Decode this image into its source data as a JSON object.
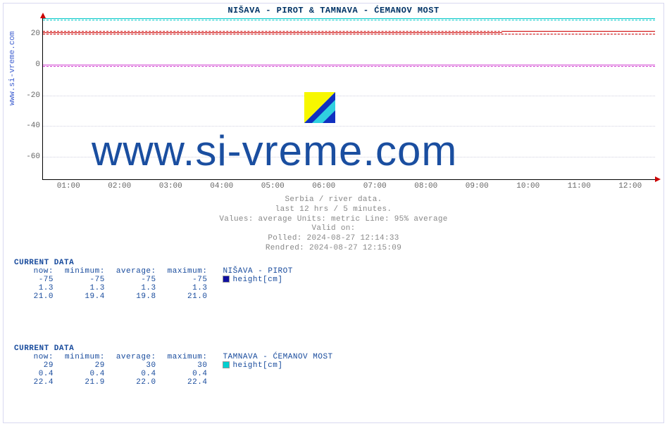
{
  "title": "NIŠAVA -  PIROT &  TAMNAVA -  ĆEMANOV MOST",
  "ylabel": "www.si-vreme.com",
  "watermark_text": "www.si-vreme.com",
  "chart": {
    "type": "line",
    "background_color": "#ffffff",
    "grid_color": "#d0d0e0",
    "axis_color": "#000000",
    "arrow_color": "#cc0000",
    "y": {
      "min": -75,
      "max": 30,
      "ticks": [
        -60,
        -40,
        -20,
        0,
        20
      ]
    },
    "x": {
      "ticks": [
        "01:00",
        "02:00",
        "03:00",
        "04:00",
        "05:00",
        "06:00",
        "07:00",
        "08:00",
        "09:00",
        "10:00",
        "11:00",
        "12:00"
      ]
    },
    "series": [
      {
        "name": "nisava-height-top",
        "color": "#00c8c8",
        "style": "solid",
        "y": 30
      },
      {
        "name": "nisava-height-band",
        "color": "#00c8c8",
        "style": "dashed",
        "y": 29
      },
      {
        "name": "tamnava-red-solid",
        "color": "#cc0000",
        "style": "solid",
        "y": 21,
        "step_at": 0.75,
        "y2": 22
      },
      {
        "name": "tamnava-red-dashed",
        "color": "#cc0000",
        "style": "dashed",
        "y": 20
      },
      {
        "name": "tamnava-red-dashed2",
        "color": "#cc0000",
        "style": "dashed",
        "y": 22
      },
      {
        "name": "zero-magenta",
        "color": "#d040d0",
        "style": "solid",
        "y": 0
      },
      {
        "name": "zero-magenta-band",
        "color": "#d040d0",
        "style": "dashed",
        "y": -1
      }
    ]
  },
  "meta": {
    "line1": "Serbia / river data.",
    "line2": "last 12 hrs / 5 minutes.",
    "line3": "Values: average  Units: metric  Line: 95% average",
    "line4": "Valid on:",
    "line5": "Polled: 2024-08-27 12:14:33",
    "line6": "Rendred: 2024-08-27 12:15:09"
  },
  "tables": [
    {
      "heading": "CURRENT DATA",
      "station": "NIŠAVA -  PIROT",
      "swatch_color": "#1010a0",
      "legend_label": "height[cm]",
      "cols": [
        "now:",
        "minimum:",
        "average:",
        "maximum:"
      ],
      "rows": [
        [
          "-75",
          "-75",
          "-75",
          "-75"
        ],
        [
          "1.3",
          "1.3",
          "1.3",
          "1.3"
        ],
        [
          "21.0",
          "19.4",
          "19.8",
          "21.0"
        ]
      ]
    },
    {
      "heading": "CURRENT DATA",
      "station": "TAMNAVA -  ĆEMANOV MOST",
      "swatch_color": "#00d0d0",
      "legend_label": "height[cm]",
      "cols": [
        "now:",
        "minimum:",
        "average:",
        "maximum:"
      ],
      "rows": [
        [
          "29",
          "29",
          "30",
          "30"
        ],
        [
          "0.4",
          "0.4",
          "0.4",
          "0.4"
        ],
        [
          "22.4",
          "21.9",
          "22.0",
          "22.4"
        ]
      ]
    }
  ]
}
